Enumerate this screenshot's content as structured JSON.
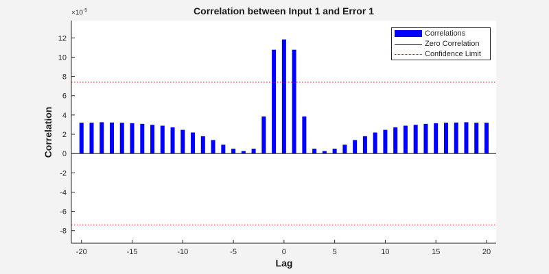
{
  "chart_data": {
    "type": "bar",
    "title": "Correlation between Input 1 and Error 1",
    "xlabel": "Lag",
    "ylabel": "Correlation",
    "y_exponent_label": "×10^-5",
    "y_scale_exponent": -5,
    "xlim": [
      -21,
      20.95
    ],
    "ylim": [
      -9.3,
      13.8
    ],
    "xticks": [
      -20,
      -15,
      -10,
      -5,
      0,
      5,
      10,
      15,
      20
    ],
    "yticks": [
      -8,
      -6,
      -4,
      -2,
      0,
      2,
      4,
      6,
      8,
      10,
      12
    ],
    "grid": false,
    "legend_position": "northeast",
    "x": [
      -20,
      -19,
      -18,
      -17,
      -16,
      -15,
      -14,
      -13,
      -12,
      -11,
      -10,
      -9,
      -8,
      -7,
      -6,
      -5,
      -4,
      -3,
      -2,
      -1,
      0,
      1,
      2,
      3,
      4,
      5,
      6,
      7,
      8,
      9,
      10,
      11,
      12,
      13,
      14,
      15,
      16,
      17,
      18,
      19,
      20
    ],
    "series": [
      {
        "name": "Correlations",
        "type": "bar",
        "color": "#0000ff",
        "values": [
          3.2,
          3.2,
          3.25,
          3.22,
          3.2,
          3.15,
          3.08,
          2.98,
          2.89,
          2.72,
          2.46,
          2.18,
          1.8,
          1.4,
          0.92,
          0.5,
          0.26,
          0.5,
          3.84,
          10.77,
          11.84,
          10.77,
          3.84,
          0.5,
          0.26,
          0.5,
          0.92,
          1.4,
          1.8,
          2.18,
          2.46,
          2.72,
          2.89,
          2.98,
          3.08,
          3.15,
          3.2,
          3.22,
          3.25,
          3.2,
          3.2
        ]
      },
      {
        "name": "Zero Correlation",
        "type": "line",
        "color": "#000000",
        "value": 0
      },
      {
        "name": "Confidence Limit",
        "type": "dotted-line",
        "color": "#ff0000",
        "values": [
          7.4,
          -7.4
        ]
      }
    ],
    "legend": [
      "Correlations",
      "Zero Correlation",
      "Confidence Limit"
    ]
  }
}
